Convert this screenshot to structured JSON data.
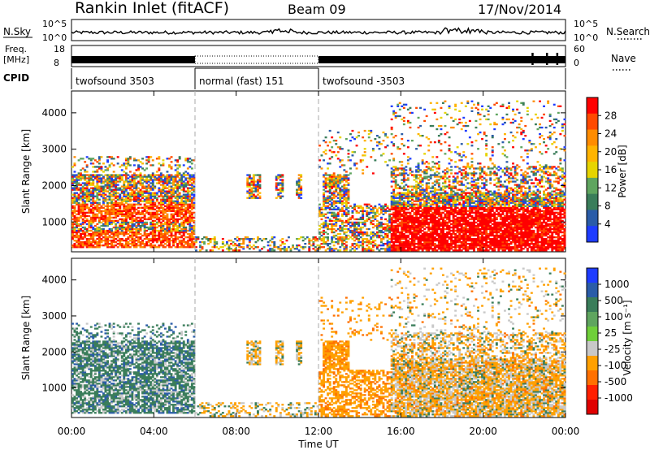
{
  "header": {
    "station": "Rankin Inlet (fitACF)",
    "beam": "Beam 09",
    "date": "17/Nov/2014"
  },
  "strips": {
    "nsky_label": "N.Sky",
    "nsearch_label": "N.Search",
    "nsky_ticks": [
      "10^5",
      "10^0"
    ],
    "nsearch_ticks": [
      "10^5",
      "10^0"
    ],
    "freq_label_line1": "Freq.",
    "freq_label_line2": "[MHz]",
    "freq_ticks": [
      "18",
      "8"
    ],
    "nave_label": "Nave",
    "nave_ticks": [
      "60",
      "0"
    ],
    "cpid_label": "CPID",
    "cpid_segments": [
      {
        "label": "twofsound 3503",
        "start_h": 0,
        "end_h": 6
      },
      {
        "label": "normal (fast) 151",
        "start_h": 6,
        "end_h": 12
      },
      {
        "label": "twofsound -3503",
        "start_h": 12,
        "end_h": 24
      }
    ]
  },
  "chart_data": [
    {
      "type": "heatmap",
      "ylabel": "Slant Range [km]",
      "ylim": [
        180,
        4600
      ],
      "yticks": [
        "1000",
        "2000",
        "3000",
        "4000"
      ],
      "ytick_values": [
        1000,
        2000,
        3000,
        4000
      ],
      "xlim": [
        0,
        24
      ],
      "colorbar_label": "Power [dB]",
      "colorbar_ticks": [
        "28",
        "24",
        "20",
        "16",
        "12",
        "8",
        "4"
      ],
      "colorbar_colors": [
        "#ff0000",
        "#ff4a00",
        "#ff8c00",
        "#ffb400",
        "#e6d400",
        "#5fa55f",
        "#3a7d5a",
        "#2a5ca8",
        "#1e3cff"
      ]
    },
    {
      "type": "heatmap",
      "ylabel": "Slant Range [km]",
      "ylim": [
        180,
        4600
      ],
      "yticks": [
        "1000",
        "2000",
        "3000",
        "4000"
      ],
      "ytick_values": [
        1000,
        2000,
        3000,
        4000
      ],
      "xlim": [
        0,
        24
      ],
      "xlabel": "Time UT",
      "xticks": [
        "00:00",
        "04:00",
        "08:00",
        "12:00",
        "16:00",
        "20:00",
        "00:00"
      ],
      "xtick_values": [
        0,
        4,
        8,
        12,
        16,
        20,
        24
      ],
      "colorbar_label": "Velocity [m s⁻¹]",
      "colorbar_ticks": [
        "1000",
        "500",
        "100",
        "25",
        "-25",
        "-100",
        "-500",
        "-1000"
      ],
      "colorbar_colors": [
        "#1e3cff",
        "#2a5ca8",
        "#3a7d5a",
        "#5fa55f",
        "#6fcf3a",
        "#c8c8c8",
        "#ffa000",
        "#ff7000",
        "#ff2000",
        "#e00000"
      ]
    }
  ]
}
